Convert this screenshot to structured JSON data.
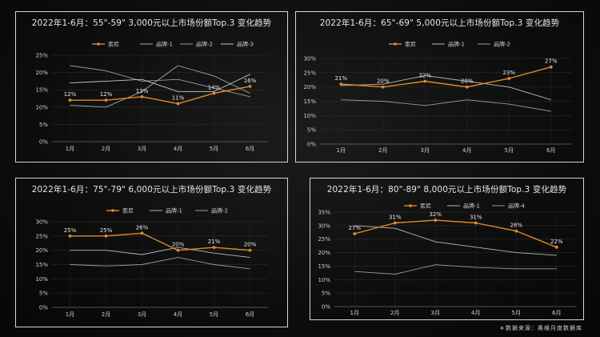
{
  "colors": {
    "sony": "#e08a2e",
    "brand1": "#b9b9b9",
    "brand2": "#9a9a9a",
    "grid": "#333333"
  },
  "source": "＊数据来源：奥维月度数据库",
  "chart_data": [
    {
      "type": "line",
      "title": "2022年1-6月：55\"-59\" 3,000元以上市场份额Top.3 变化趋势",
      "categories": [
        "1月",
        "2月",
        "3月",
        "4月",
        "5月",
        "6月"
      ],
      "ylim": [
        0,
        25
      ],
      "yticks": [
        "0%",
        "5%",
        "10%",
        "15%",
        "20%",
        "25%"
      ],
      "legend_position": "top",
      "series": [
        {
          "name": "索尼",
          "values": [
            12,
            12,
            13,
            11,
            14,
            16
          ],
          "labels": [
            "12%",
            "12%",
            "13%",
            "11%",
            "14%",
            "16%"
          ],
          "color": "#e08a2e",
          "highlight": true
        },
        {
          "name": "品牌-1",
          "values": [
            10.5,
            10,
            14.5,
            22,
            19,
            14
          ],
          "color": "#a8a8a8"
        },
        {
          "name": "品牌-2",
          "values": [
            22,
            20.5,
            17.5,
            18,
            15.5,
            13
          ],
          "color": "#9a9a9a"
        },
        {
          "name": "品牌-3",
          "values": [
            17,
            17.5,
            18,
            14.5,
            14.5,
            19.5
          ],
          "color": "#c4c4c4"
        }
      ]
    },
    {
      "type": "line",
      "title": "2022年1-6月：65\"-69\" 5,000元以上市场份额Top.3 变化趋势",
      "categories": [
        "1月",
        "2月",
        "3月",
        "4月",
        "5月",
        "6月"
      ],
      "ylim": [
        0,
        30
      ],
      "yticks": [
        "0%",
        "5%",
        "10%",
        "15%",
        "20%",
        "25%",
        "30%"
      ],
      "legend_position": "top",
      "series": [
        {
          "name": "索尼",
          "values": [
            21,
            20,
            22,
            20,
            23,
            27
          ],
          "labels": [
            "21%",
            "20%",
            "22%",
            "20%",
            "23%",
            "27%"
          ],
          "color": "#e08a2e",
          "highlight": true
        },
        {
          "name": "品牌-1",
          "values": [
            20.5,
            21,
            24,
            22,
            20,
            15.5
          ],
          "color": "#b9b9b9"
        },
        {
          "name": "品牌-2",
          "values": [
            15.5,
            15,
            13.5,
            15.5,
            14,
            11.5
          ],
          "color": "#9a9a9a"
        }
      ]
    },
    {
      "type": "line",
      "title": "2022年1-6月：75\"-79\" 6,000元以上市场份额Top.3 变化趋势",
      "categories": [
        "1月",
        "2月",
        "3月",
        "4月",
        "5月",
        "6月"
      ],
      "ylim": [
        0,
        30
      ],
      "yticks": [
        "0%",
        "5%",
        "10%",
        "15%",
        "20%",
        "25%",
        "30%"
      ],
      "legend_position": "top",
      "series": [
        {
          "name": "索尼",
          "values": [
            25,
            25,
            26,
            20,
            21,
            20
          ],
          "labels": [
            "25%",
            "25%",
            "26%",
            "20%",
            "21%",
            "20%"
          ],
          "color": "#e08a2e",
          "highlight": true
        },
        {
          "name": "品牌-1",
          "values": [
            20,
            20,
            18.5,
            21,
            19,
            17.5
          ],
          "color": "#b9b9b9"
        },
        {
          "name": "品牌-2",
          "values": [
            15,
            14.5,
            15,
            17.5,
            15,
            13.5
          ],
          "color": "#9a9a9a"
        }
      ]
    },
    {
      "type": "line",
      "title": "2022年1-6月：80\"-89\" 8,000元以上市场份额Top.3 变化趋势",
      "categories": [
        "1月",
        "2月",
        "3月",
        "4月",
        "5月",
        "6月"
      ],
      "ylim": [
        0,
        35
      ],
      "yticks": [
        "0%",
        "5%",
        "10%",
        "15%",
        "20%",
        "25%",
        "30%",
        "35%"
      ],
      "legend_position": "top",
      "series": [
        {
          "name": "索尼",
          "values": [
            27,
            31,
            32,
            31,
            28,
            22
          ],
          "labels": [
            "27%",
            "31%",
            "32%",
            "31%",
            "28%",
            "22%"
          ],
          "color": "#e08a2e",
          "highlight": true
        },
        {
          "name": "品牌-1",
          "values": [
            30,
            29,
            24,
            22,
            20,
            19
          ],
          "color": "#b9b9b9"
        },
        {
          "name": "品牌-4",
          "values": [
            13,
            12,
            15.5,
            14.5,
            14,
            14
          ],
          "color": "#9a9a9a"
        }
      ]
    }
  ]
}
